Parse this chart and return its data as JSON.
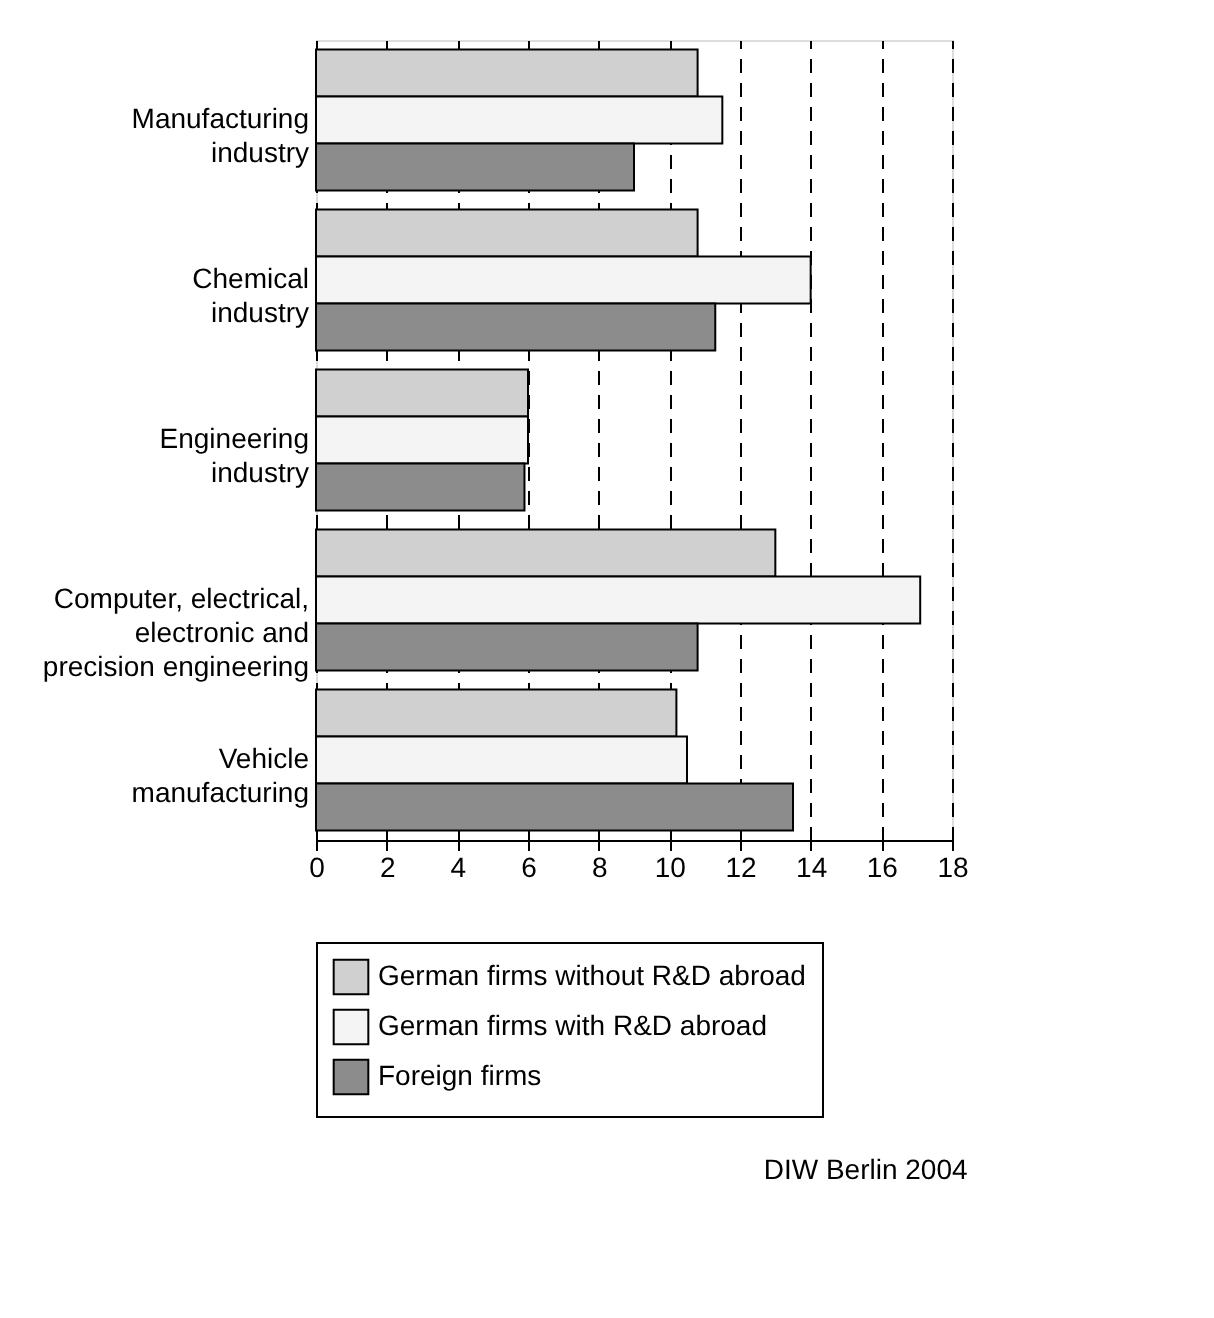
{
  "chart_data": {
    "type": "bar",
    "orientation": "horizontal",
    "categories": [
      "Manufacturing industry",
      "Chemical industry",
      "Engineering industry",
      "Computer, electrical, electronic and precision engineering",
      "Vehicle manufacturing"
    ],
    "series": [
      {
        "name": "German firms without R&D abroad",
        "color": "#d0d0d0",
        "values": [
          10.8,
          10.8,
          6.0,
          13.0,
          10.2
        ]
      },
      {
        "name": "German firms with R&D abroad",
        "color": "#f4f4f4",
        "values": [
          11.5,
          14.0,
          6.0,
          17.1,
          10.5
        ]
      },
      {
        "name": "Foreign firms",
        "color": "#8c8c8c",
        "values": [
          9.0,
          11.3,
          5.9,
          10.8,
          13.5
        ]
      }
    ],
    "xlim": [
      0,
      18
    ],
    "xticks": [
      0,
      2,
      4,
      6,
      8,
      10,
      12,
      14,
      16,
      18
    ],
    "grid": "x",
    "legend": "bottom",
    "annotations": [
      "DIW Berlin 2004"
    ]
  }
}
